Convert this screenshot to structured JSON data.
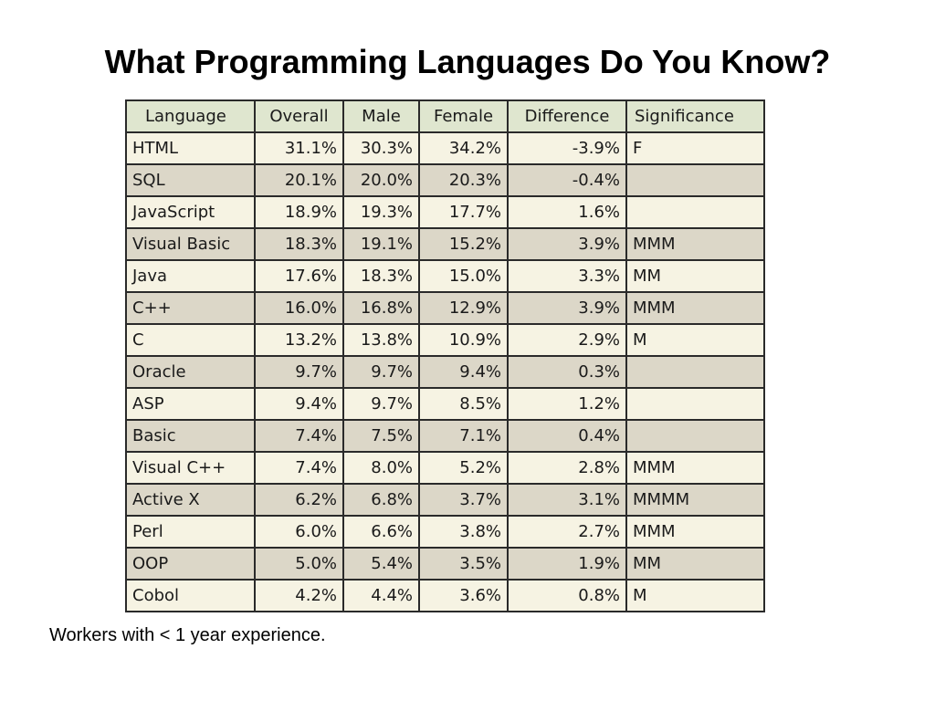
{
  "slide": {
    "title": "What Programming Languages Do You Know?",
    "footnote": "Workers with < 1 year experience."
  },
  "table": {
    "headers": {
      "language": "Language",
      "overall": "Overall",
      "male": "Male",
      "female": "Female",
      "difference": "Difference",
      "significance": "Significance"
    },
    "rows": [
      {
        "language": "HTML",
        "overall": "31.1%",
        "male": "30.3%",
        "female": "34.2%",
        "difference": "-3.9%",
        "significance": "F"
      },
      {
        "language": "SQL",
        "overall": "20.1%",
        "male": "20.0%",
        "female": "20.3%",
        "difference": "-0.4%",
        "significance": ""
      },
      {
        "language": "JavaScript",
        "overall": "18.9%",
        "male": "19.3%",
        "female": "17.7%",
        "difference": "1.6%",
        "significance": ""
      },
      {
        "language": "Visual Basic",
        "overall": "18.3%",
        "male": "19.1%",
        "female": "15.2%",
        "difference": "3.9%",
        "significance": "MMM"
      },
      {
        "language": "Java",
        "overall": "17.6%",
        "male": "18.3%",
        "female": "15.0%",
        "difference": "3.3%",
        "significance": "MM"
      },
      {
        "language": "C++",
        "overall": "16.0%",
        "male": "16.8%",
        "female": "12.9%",
        "difference": "3.9%",
        "significance": "MMM"
      },
      {
        "language": "C",
        "overall": "13.2%",
        "male": "13.8%",
        "female": "10.9%",
        "difference": "2.9%",
        "significance": "M"
      },
      {
        "language": "Oracle",
        "overall": "9.7%",
        "male": "9.7%",
        "female": "9.4%",
        "difference": "0.3%",
        "significance": ""
      },
      {
        "language": "ASP",
        "overall": "9.4%",
        "male": "9.7%",
        "female": "8.5%",
        "difference": "1.2%",
        "significance": ""
      },
      {
        "language": "Basic",
        "overall": "7.4%",
        "male": "7.5%",
        "female": "7.1%",
        "difference": "0.4%",
        "significance": ""
      },
      {
        "language": "Visual C++",
        "overall": "7.4%",
        "male": "8.0%",
        "female": "5.2%",
        "difference": "2.8%",
        "significance": "MMM"
      },
      {
        "language": "Active X",
        "overall": "6.2%",
        "male": "6.8%",
        "female": "3.7%",
        "difference": "3.1%",
        "significance": "MMMM"
      },
      {
        "language": "Perl",
        "overall": "6.0%",
        "male": "6.6%",
        "female": "3.8%",
        "difference": "2.7%",
        "significance": "MMM"
      },
      {
        "language": "OOP",
        "overall": "5.0%",
        "male": "5.4%",
        "female": "3.5%",
        "difference": "1.9%",
        "significance": "MM"
      },
      {
        "language": "Cobol",
        "overall": "4.2%",
        "male": "4.4%",
        "female": "3.6%",
        "difference": "0.8%",
        "significance": "M"
      }
    ]
  },
  "colors": {
    "header_bg": "#dfe6cf",
    "row_light_bg": "#f6f3e3",
    "row_dark_bg": "#dcd7c8",
    "border": "#2a2a2a"
  }
}
